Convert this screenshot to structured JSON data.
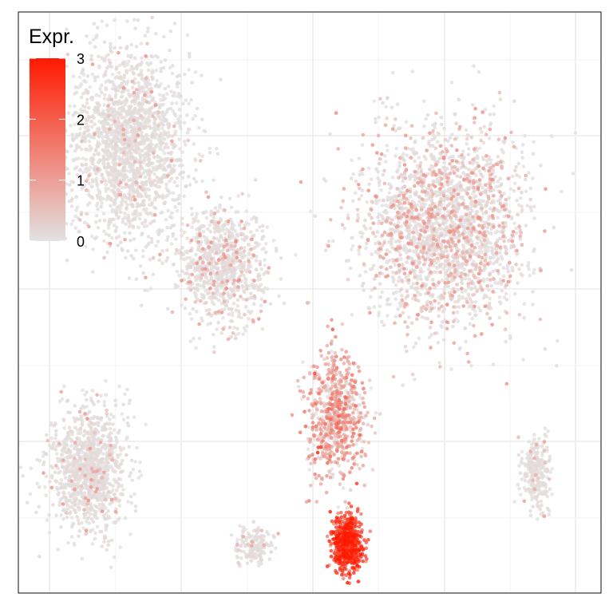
{
  "chart_data": {
    "type": "scatter",
    "title": "",
    "xlabel": "",
    "ylabel": "",
    "grid": true,
    "axis_ticks_shown": false,
    "legend": {
      "title": "Expr.",
      "placement": "top-left",
      "type": "colorbar",
      "ticks": [
        {
          "value": 0,
          "label": "0"
        },
        {
          "value": 1,
          "label": "1"
        },
        {
          "value": 2,
          "label": "2"
        },
        {
          "value": 3,
          "label": "3"
        }
      ],
      "range": [
        0,
        3
      ]
    },
    "color_scale": {
      "low": "#e2e2e2",
      "high": "#ff1a00"
    },
    "point_color_base": "#e2e2e2",
    "clusters": [
      {
        "name": "",
        "shape": "upper-left lobe",
        "center": [
          -6.2,
          6.0
        ],
        "spread": [
          1.9,
          2.8
        ],
        "count": 1900,
        "mean_expr": 0.02
      },
      {
        "name": "",
        "shape": "left-center bridge",
        "center": [
          -3.0,
          2.2
        ],
        "spread": [
          1.4,
          1.6
        ],
        "count": 900,
        "mean_expr": 0.08
      },
      {
        "name": "",
        "shape": "upper-right lobe",
        "center": [
          4.6,
          3.4
        ],
        "spread": [
          2.6,
          2.8
        ],
        "count": 2300,
        "mean_expr": 0.18
      },
      {
        "name": "",
        "shape": "central stem",
        "center": [
          0.9,
          -2.6
        ],
        "spread": [
          0.9,
          1.8
        ],
        "count": 700,
        "mean_expr": 0.7
      },
      {
        "name": "",
        "shape": "expression hotspot",
        "center": [
          1.3,
          -6.6
        ],
        "spread": [
          0.45,
          0.75
        ],
        "count": 650,
        "mean_expr": 2.3
      },
      {
        "name": "",
        "shape": "lower-left cluster",
        "center": [
          -7.6,
          -4.3
        ],
        "spread": [
          1.2,
          1.8
        ],
        "count": 1100,
        "mean_expr": 0.03
      },
      {
        "name": "",
        "shape": "bottom small cluster",
        "center": [
          -1.9,
          -6.7
        ],
        "spread": [
          0.55,
          0.5
        ],
        "count": 160,
        "mean_expr": 0.05
      },
      {
        "name": "",
        "shape": "right small cluster",
        "center": [
          7.8,
          -4.4
        ],
        "spread": [
          0.45,
          1.0
        ],
        "count": 260,
        "mean_expr": 0.05
      }
    ],
    "notable_points_expr_range": [
      0,
      3
    ]
  }
}
